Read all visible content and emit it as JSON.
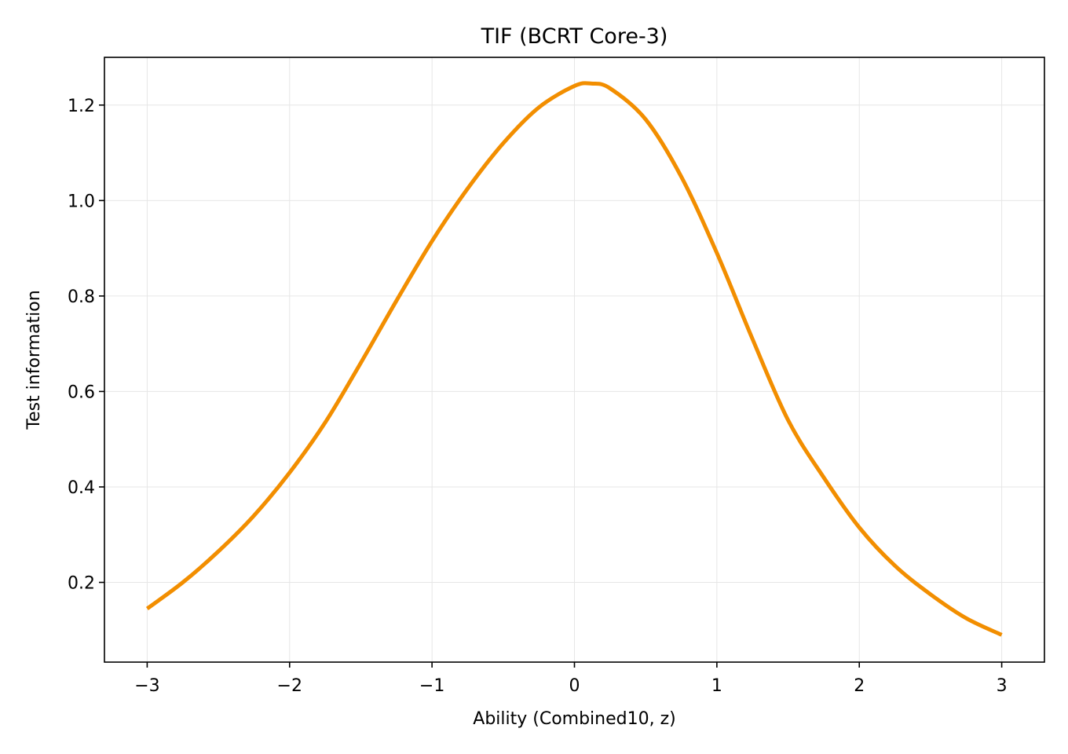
{
  "chart_data": {
    "type": "line",
    "title": "TIF (BCRT Core-3)",
    "xlabel": "Ability (Combined10, z)",
    "ylabel": "Test information",
    "xlim": [
      -3.3,
      3.3
    ],
    "ylim": [
      0.033,
      1.3
    ],
    "xticks": [
      -3,
      -2,
      -1,
      0,
      1,
      2,
      3
    ],
    "xtick_labels": [
      "−3",
      "−2",
      "−1",
      "0",
      "1",
      "2",
      "3"
    ],
    "yticks": [
      0.2,
      0.4,
      0.6,
      0.8,
      1.0,
      1.2
    ],
    "ytick_labels": [
      "0.2",
      "0.4",
      "0.6",
      "0.8",
      "1.0",
      "1.2"
    ],
    "grid": true,
    "legend": "none",
    "series": [
      {
        "color": "#f28e00",
        "x": [
          -3.0,
          -2.75,
          -2.5,
          -2.25,
          -2.0,
          -1.75,
          -1.5,
          -1.25,
          -1.0,
          -0.75,
          -0.5,
          -0.25,
          0.0,
          0.12,
          0.25,
          0.5,
          0.75,
          1.0,
          1.25,
          1.5,
          1.75,
          2.0,
          2.25,
          2.5,
          2.75,
          3.0
        ],
        "y": [
          0.145,
          0.2,
          0.265,
          0.34,
          0.43,
          0.535,
          0.66,
          0.79,
          0.915,
          1.025,
          1.12,
          1.195,
          1.24,
          1.245,
          1.235,
          1.17,
          1.05,
          0.89,
          0.71,
          0.54,
          0.42,
          0.315,
          0.235,
          0.175,
          0.125,
          0.09
        ]
      }
    ]
  }
}
